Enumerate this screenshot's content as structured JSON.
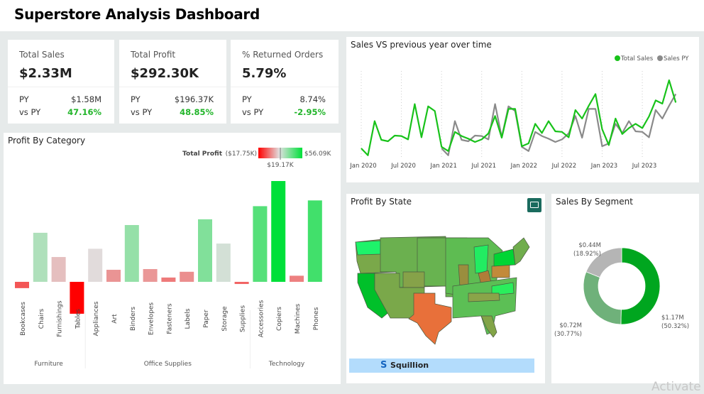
{
  "header": {
    "title": "Superstore Analysis Dashboard"
  },
  "kpis": [
    {
      "label": "Total Sales",
      "value": "$2.33M",
      "py_label": "PY",
      "py": "$1.58M",
      "vs_label": "vs PY",
      "vs": "47.16%"
    },
    {
      "label": "Total Profit",
      "value": "$292.30K",
      "py_label": "PY",
      "py": "$196.37K",
      "vs_label": "vs PY",
      "vs": "48.85%"
    },
    {
      "label": "% Returned Orders",
      "value": "5.79%",
      "py_label": "PY",
      "py": "8.74%",
      "vs_label": "vs PY",
      "vs": "-2.95%"
    }
  ],
  "colors": {
    "positive": "#22b52a",
    "min": "#ff0000",
    "mid": "#e0e0e0",
    "max": "#00e03a",
    "sales": "#18c21a",
    "sales_py": "#8a8a8a",
    "seg1": "#00a61f",
    "seg2": "#6fb17a",
    "seg3": "#b5b5b5",
    "texas": "#e8703a",
    "brand_bar": "#b3dcfc"
  },
  "chart_data": [
    {
      "type": "bar",
      "title": "Profit By Category",
      "legend": {
        "title": "Total Profit",
        "min_label": "($17.75K)",
        "mid_label": "$19.17K",
        "max_label": "$56.09K",
        "min": -17.75,
        "mid": 19.17,
        "max": 56.09
      },
      "unit": "$K",
      "groups": [
        {
          "name": "Furniture",
          "categories": [
            "Bookcases",
            "Chairs",
            "Furnishings",
            "Tables"
          ],
          "values": [
            -3.5,
            27.3,
            13.8,
            -17.75
          ]
        },
        {
          "name": "Office Supplies",
          "categories": [
            "Appliances",
            "Art",
            "Binders",
            "Envelopes",
            "Fasteners",
            "Labels",
            "Paper",
            "Storage",
            "Supplies"
          ],
          "values": [
            18.4,
            6.7,
            31.6,
            7.1,
            2.4,
            5.6,
            34.8,
            21.3,
            -1.2
          ]
        },
        {
          "name": "Technology",
          "categories": [
            "Accessories",
            "Copiers",
            "Machines",
            "Phones"
          ],
          "values": [
            42.1,
            56.09,
            3.4,
            45.3
          ]
        }
      ]
    },
    {
      "type": "line",
      "title": "Sales VS previous year over time",
      "x_ticks": [
        "Jan 2020",
        "Jul 2020",
        "Jan 2021",
        "Jul 2021",
        "Jan 2022",
        "Jul 2022",
        "Jan 2023",
        "Jul 2023"
      ],
      "x_range": [
        "Jan 2020",
        "Dec 2023"
      ],
      "grid": "vertical dotted",
      "legend_position": "top-right",
      "series": [
        {
          "name": "Total Sales",
          "start": "Jan 2020",
          "values": [
            17.5,
            9.3,
            49.5,
            27.5,
            25.8,
            32.5,
            32,
            28,
            69.5,
            30.5,
            66.8,
            61.3,
            19.3,
            14.3,
            36.8,
            32,
            28.8,
            25,
            28,
            35,
            55.5,
            30,
            63.8,
            63.8,
            20,
            23.3,
            46.3,
            35.5,
            49.5,
            37.5,
            36.8,
            30.5,
            62.5,
            52.5,
            67.5,
            81.3,
            40,
            21.3,
            52.5,
            34.3,
            41.3,
            46.3,
            41.3,
            55,
            73.8,
            70,
            97.5,
            71.3
          ]
        },
        {
          "name": "Sales PY",
          "start": "Jan 2021",
          "values": [
            17.5,
            9.3,
            49.5,
            27.5,
            25.8,
            32.5,
            32,
            28,
            69.5,
            30.5,
            66.8,
            61.3,
            19.3,
            14.3,
            36.8,
            32,
            28.8,
            25,
            28,
            35,
            55.5,
            30,
            63.8,
            63.8,
            20,
            23.3,
            46.3,
            35.5,
            49.5,
            37.5,
            36.8,
            30.5,
            62.5,
            52.5,
            67.5,
            81.3
          ]
        }
      ]
    },
    {
      "type": "pie",
      "title": "Sales By Segment",
      "donut": true,
      "slices": [
        {
          "value": "$1.17M",
          "pct": "(50.32%)",
          "share": 50.32
        },
        {
          "value": "$0.72M",
          "pct": "(30.77%)",
          "share": 30.77
        },
        {
          "value": "$0.44M",
          "pct": "(18.92%)",
          "share": 18.92
        }
      ]
    }
  ],
  "map": {
    "title": "Profit By State",
    "brand": "Squillion"
  },
  "watermark": "Activate"
}
